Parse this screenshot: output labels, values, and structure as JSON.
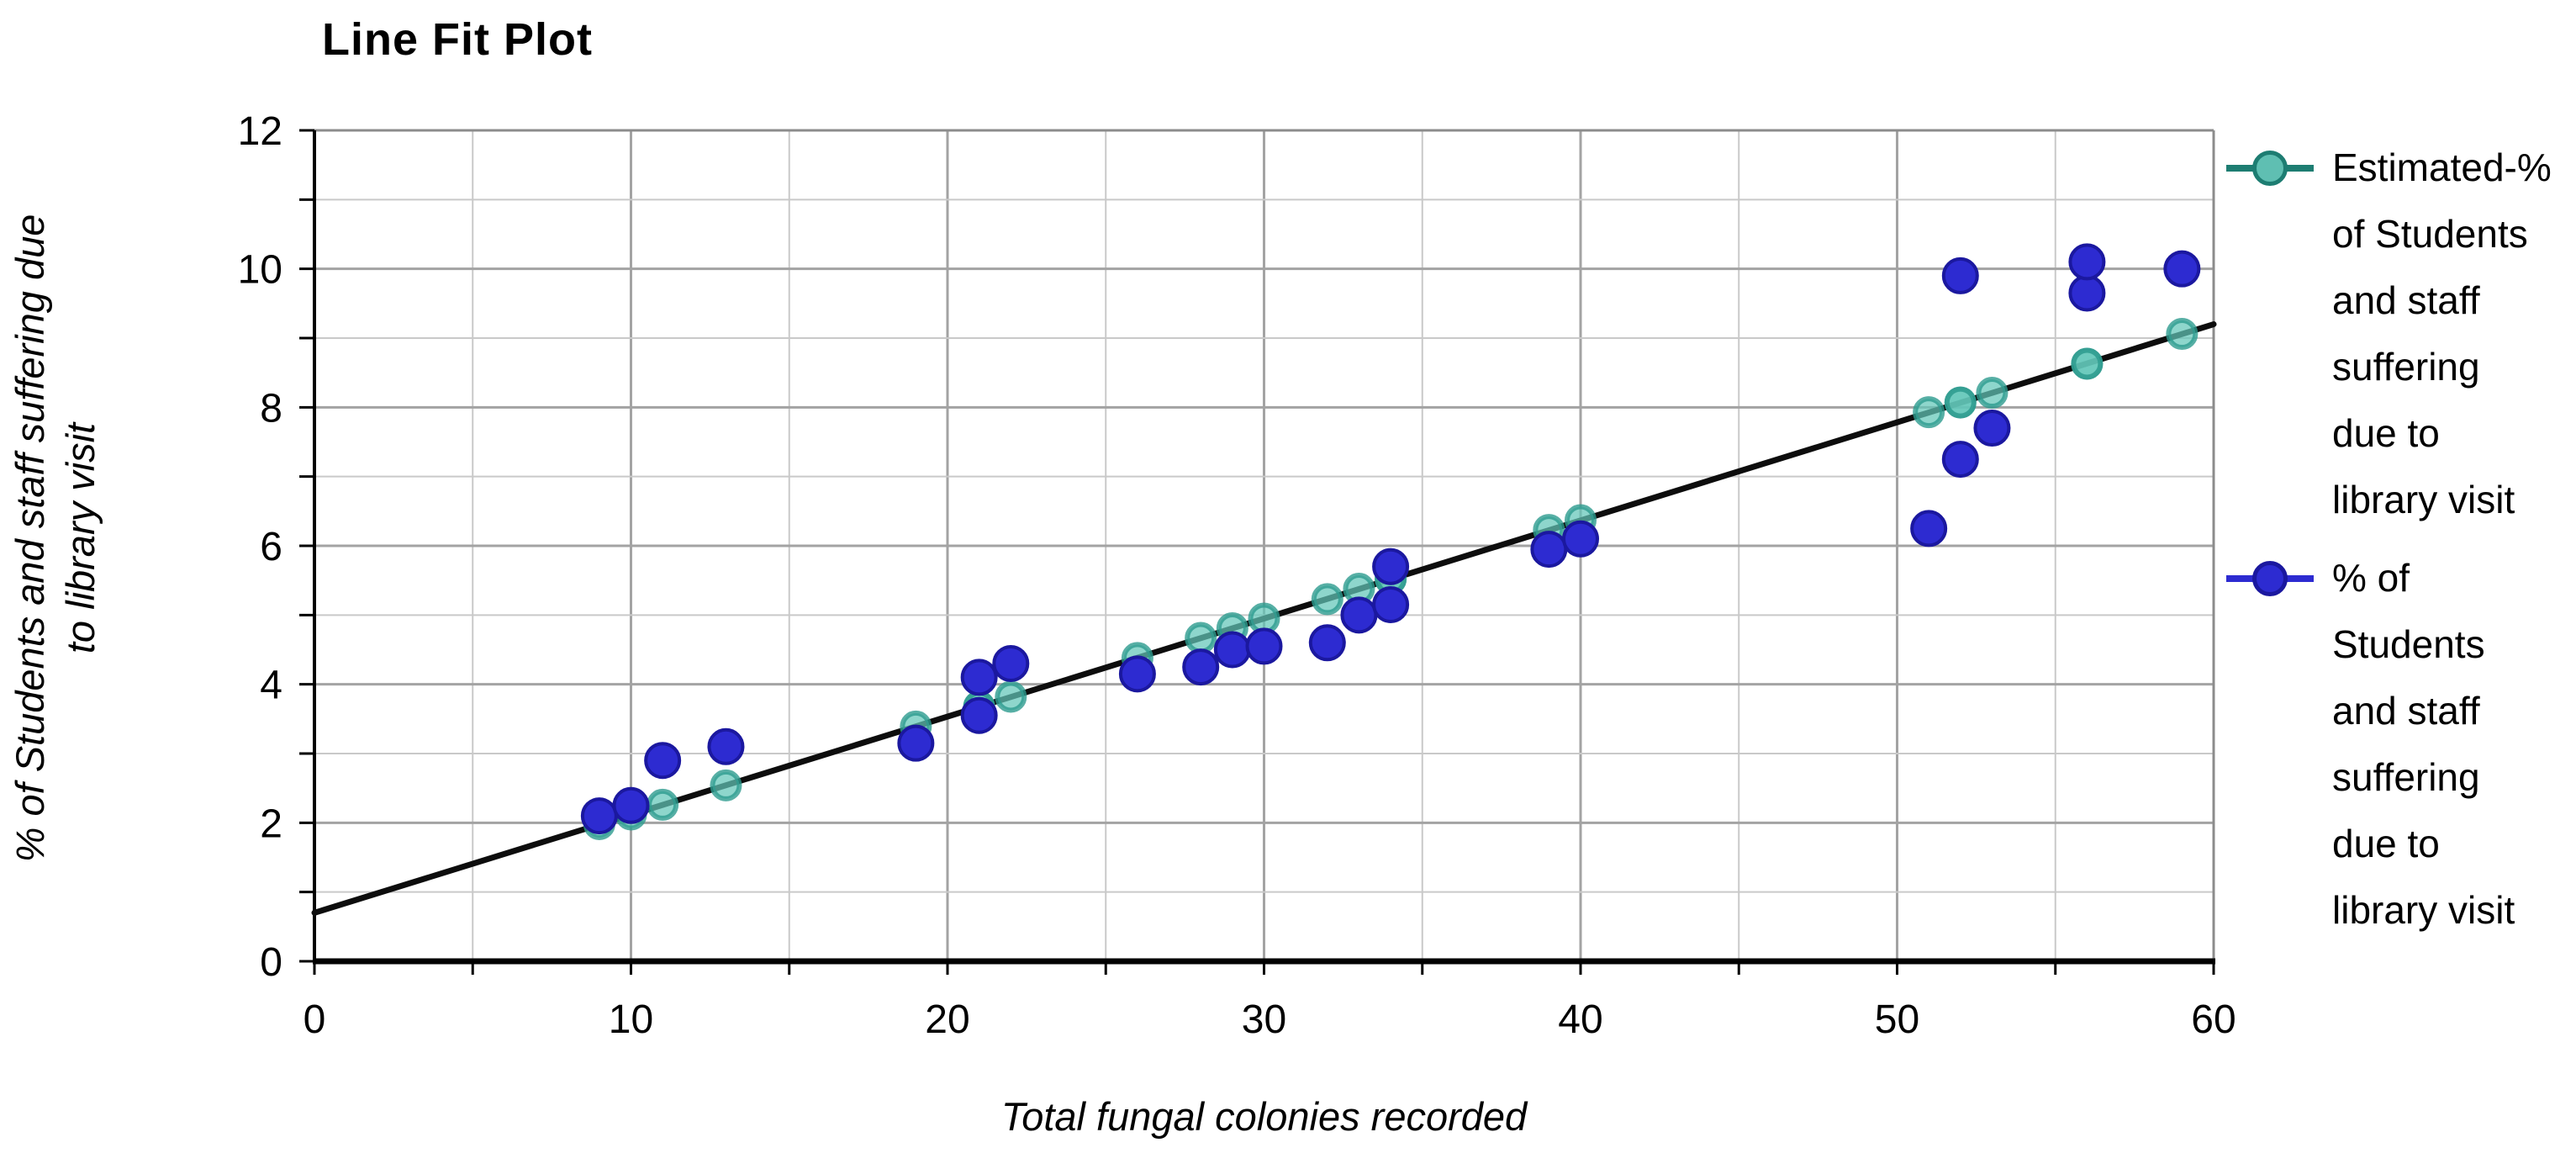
{
  "title": "Line Fit Plot",
  "axes": {
    "x_label": "Total fungal colonies recorded",
    "y_label": "% of Students and staff suffering due to library visit",
    "y_label_lines": [
      "% of Students and staff suffering due",
      "to library visit"
    ]
  },
  "chart_data": {
    "type": "scatter",
    "title": "Line Fit Plot",
    "xlabel": "Total fungal colonies recorded",
    "ylabel": "% of Students and staff suffering due to library visit",
    "xlim": [
      0,
      60
    ],
    "ylim": [
      0,
      12
    ],
    "x_ticks": [
      0,
      10,
      20,
      30,
      40,
      50,
      60
    ],
    "y_ticks": [
      0,
      2,
      4,
      6,
      8,
      10,
      12
    ],
    "x_minor_step": 5,
    "y_minor_step": 1,
    "grid": true,
    "legend_position": "right",
    "fit_line": {
      "x1": 0,
      "y1": 0.7,
      "x2": 60,
      "y2": 9.2
    },
    "series": [
      {
        "name": "Estimated-% of Students and staff suffering due to library visit",
        "marker": "circle",
        "marker_fill": "#63c6b8",
        "marker_ring": "#2d9b8e",
        "points": [
          [
            9,
            1.98
          ],
          [
            10,
            2.12
          ],
          [
            11,
            2.26
          ],
          [
            13,
            2.54
          ],
          [
            19,
            3.39
          ],
          [
            21,
            3.68
          ],
          [
            21,
            3.68
          ],
          [
            22,
            3.82
          ],
          [
            26,
            4.38
          ],
          [
            28,
            4.67
          ],
          [
            29,
            4.81
          ],
          [
            30,
            4.95
          ],
          [
            32,
            5.23
          ],
          [
            33,
            5.38
          ],
          [
            34,
            5.52
          ],
          [
            34,
            5.52
          ],
          [
            39,
            6.23
          ],
          [
            40,
            6.37
          ],
          [
            51,
            7.93
          ],
          [
            52,
            8.07
          ],
          [
            52,
            8.07
          ],
          [
            53,
            8.21
          ],
          [
            56,
            8.63
          ],
          [
            56,
            8.63
          ],
          [
            59,
            9.06
          ]
        ]
      },
      {
        "name": "% of Students and staff suffering due to library visit",
        "marker": "circle",
        "marker_fill": "#2d2bd1",
        "marker_ring": "#1b189f",
        "points": [
          [
            9,
            2.1
          ],
          [
            10,
            2.25
          ],
          [
            11,
            2.9
          ],
          [
            13,
            3.1
          ],
          [
            19,
            3.15
          ],
          [
            21,
            3.55
          ],
          [
            21,
            4.1
          ],
          [
            22,
            4.3
          ],
          [
            26,
            4.15
          ],
          [
            28,
            4.25
          ],
          [
            29,
            4.5
          ],
          [
            30,
            4.55
          ],
          [
            32,
            4.6
          ],
          [
            33,
            5.0
          ],
          [
            34,
            5.15
          ],
          [
            34,
            5.7
          ],
          [
            39,
            5.95
          ],
          [
            40,
            6.1
          ],
          [
            51,
            6.25
          ],
          [
            52,
            7.25
          ],
          [
            52,
            9.9
          ],
          [
            53,
            7.7
          ],
          [
            56,
            9.65
          ],
          [
            56,
            10.1
          ],
          [
            59,
            10.0
          ]
        ]
      }
    ],
    "colors": {
      "fit_line": "#0d0d0d",
      "grid_major": "#a3a3a3",
      "grid_minor": "#c9c9c9",
      "plot_border": "#8c8c8c",
      "axis": "#000000"
    }
  },
  "legend": {
    "entries": [
      {
        "id": "estimated",
        "label": "Estimated-% of Students and staff suffering due to library visit",
        "label_lines": [
          "Estimated-%",
          "of Students",
          "and staff",
          "suffering",
          "due to",
          "library visit"
        ],
        "line_color": "#1d7d72",
        "marker_fill": "#5fbfb2",
        "marker_ring": "#1d7d72"
      },
      {
        "id": "actual",
        "label": "% of Students and staff suffering due to library visit",
        "label_lines": [
          "% of",
          "Students",
          "and staff",
          "suffering",
          "due to",
          "library visit"
        ],
        "line_color": "#2d2bd1",
        "marker_fill": "#2d2bd1",
        "marker_ring": "#1b189f"
      }
    ]
  }
}
